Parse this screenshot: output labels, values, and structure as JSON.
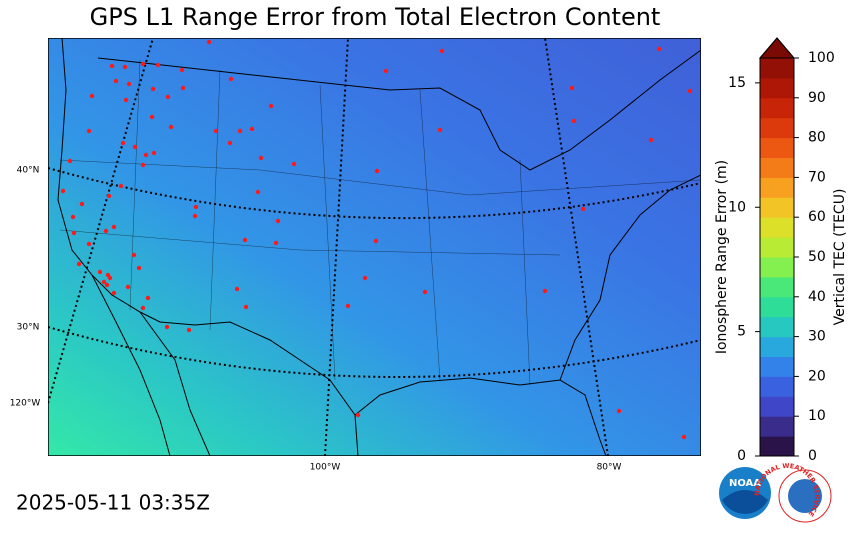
{
  "title": "GPS L1 Range Error from Total Electron Content",
  "timestamp": "2025-05-11 03:35Z",
  "map": {
    "graticule_labels": [
      "40°N",
      "30°N",
      "120°W",
      "100°W",
      "80°W"
    ]
  },
  "colorbar": {
    "label": "Vertical TEC (TECU)",
    "lim": [
      0,
      100
    ],
    "ticks": [
      0,
      10,
      20,
      30,
      40,
      50,
      60,
      70,
      80,
      90,
      100
    ],
    "range_label": "Ionosphere Range Error (m)",
    "range_lim": [
      0,
      16
    ],
    "range_ticks": [
      0,
      5,
      10,
      15
    ]
  },
  "logos": {
    "noaa": "NOAA",
    "nws": "NATIONAL WEATHER SERVICE"
  }
}
